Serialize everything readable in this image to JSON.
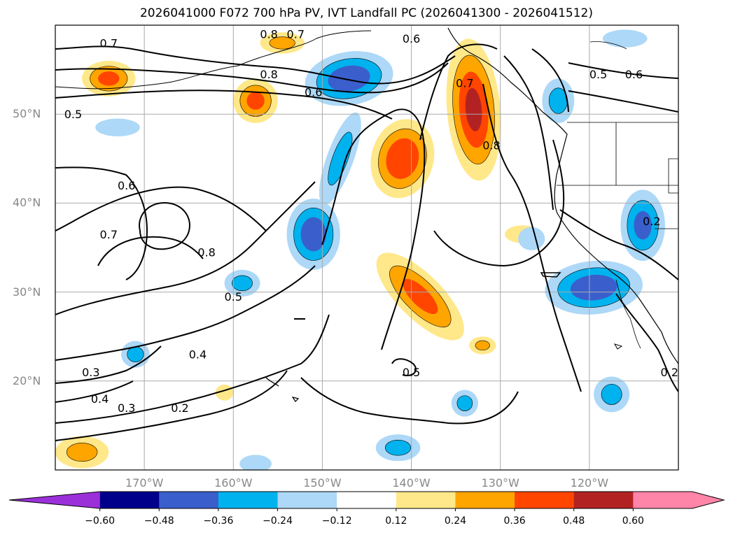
{
  "title": "2026041000 F072 700 hPa PV, IVT Landfall PC (2026041300 - 2026041512)",
  "map_extent": {
    "lon_min": -180,
    "lon_max": -110,
    "lat_min": 10,
    "lat_max": 60
  },
  "lat_labels": [
    {
      "lat": 50,
      "label": "50°N"
    },
    {
      "lat": 40,
      "label": "40°N"
    },
    {
      "lat": 30,
      "label": "30°N"
    },
    {
      "lat": 20,
      "label": "20°N"
    }
  ],
  "lon_labels": [
    {
      "lon": -170,
      "label": "170°W"
    },
    {
      "lon": -160,
      "label": "160°W"
    },
    {
      "lon": -150,
      "label": "150°W"
    },
    {
      "lon": -140,
      "label": "140°W"
    },
    {
      "lon": -130,
      "label": "130°W"
    },
    {
      "lon": -120,
      "label": "120°W"
    }
  ],
  "colorbar": {
    "bounds": [
      -0.72,
      -0.6,
      -0.48,
      -0.36,
      -0.24,
      -0.12,
      0.12,
      0.24,
      0.36,
      0.48,
      0.6,
      0.72
    ],
    "colors": [
      "#9b30d9",
      "#00008b",
      "#3a5fcd",
      "#00b2ee",
      "#add8f7",
      "#ffffff",
      "#ffe88a",
      "#ffa500",
      "#ff4500",
      "#b22222",
      "#ff85a8"
    ],
    "extend_colors": {
      "min": "#9b30d9",
      "max": "#ff85a8"
    },
    "tick_labels": [
      "−0.60",
      "−0.48",
      "−0.36",
      "−0.24",
      "−0.12",
      "0.12",
      "0.24",
      "0.36",
      "0.48",
      "0.60"
    ]
  },
  "contour_labels": [
    {
      "text": "0.7",
      "lon": -174,
      "lat": 58
    },
    {
      "text": "0.7",
      "lon": -153,
      "lat": 59
    },
    {
      "text": "0.8",
      "lon": -156,
      "lat": 59
    },
    {
      "text": "0.6",
      "lon": -140,
      "lat": 58.5
    },
    {
      "text": "0.8",
      "lon": -156,
      "lat": 54.5
    },
    {
      "text": "0.6",
      "lon": -151,
      "lat": 52.5
    },
    {
      "text": "0.5",
      "lon": -178,
      "lat": 50
    },
    {
      "text": "0.7",
      "lon": -134,
      "lat": 53.5
    },
    {
      "text": "0.8",
      "lon": -131,
      "lat": 46.5
    },
    {
      "text": "0.5",
      "lon": -119,
      "lat": 54.5
    },
    {
      "text": "0.6",
      "lon": -115,
      "lat": 54.5
    },
    {
      "text": "0.6",
      "lon": -172,
      "lat": 42
    },
    {
      "text": "0.7",
      "lon": -174,
      "lat": 36.5
    },
    {
      "text": "0.8",
      "lon": -163,
      "lat": 34.5
    },
    {
      "text": "0.5",
      "lon": -160,
      "lat": 29.5
    },
    {
      "text": "0.4",
      "lon": -164,
      "lat": 23
    },
    {
      "text": "0.3",
      "lon": -176,
      "lat": 21
    },
    {
      "text": "0.4",
      "lon": -175,
      "lat": 18
    },
    {
      "text": "0.3",
      "lon": -172,
      "lat": 17
    },
    {
      "text": "0.2",
      "lon": -166,
      "lat": 17
    },
    {
      "text": "0.5",
      "lon": -140,
      "lat": 21
    },
    {
      "text": "0.2",
      "lon": -113,
      "lat": 38
    },
    {
      "text": "0.2",
      "lon": -111,
      "lat": 21
    }
  ],
  "shaded_anomalies": [
    {
      "sign": "positive",
      "peak": 0.48,
      "lon": -141,
      "lat": 45,
      "rx": 3.5,
      "ry": 4.5,
      "rot": 15
    },
    {
      "sign": "positive",
      "peak": 0.5,
      "lon": -133,
      "lat": 50.5,
      "rx": 3.0,
      "ry": 8.0,
      "rot": -5
    },
    {
      "sign": "positive",
      "peak": 0.4,
      "lon": -139,
      "lat": 29.5,
      "rx": 2.5,
      "ry": 6.5,
      "rot": -45
    },
    {
      "sign": "positive",
      "peak": 0.4,
      "lon": -157.5,
      "lat": 51.5,
      "rx": 2.5,
      "ry": 2.5,
      "rot": 0
    },
    {
      "sign": "positive",
      "peak": 0.4,
      "lon": -174,
      "lat": 54,
      "rx": 3.0,
      "ry": 2.0,
      "rot": 0
    },
    {
      "sign": "positive",
      "peak": 0.3,
      "lon": -154.5,
      "lat": 58,
      "rx": 2.5,
      "ry": 1.2,
      "rot": 0
    },
    {
      "sign": "positive",
      "peak": 0.24,
      "lon": -127.5,
      "lat": 36.5,
      "rx": 2.0,
      "ry": 1.0,
      "rot": 0
    },
    {
      "sign": "positive",
      "peak": 0.28,
      "lon": -132,
      "lat": 24,
      "rx": 1.5,
      "ry": 1.0,
      "rot": 0
    },
    {
      "sign": "positive",
      "peak": 0.3,
      "lon": -177,
      "lat": 12,
      "rx": 3.0,
      "ry": 1.8,
      "rot": 0
    },
    {
      "sign": "positive",
      "peak": 0.2,
      "lon": -161,
      "lat": 18.7,
      "rx": 1.0,
      "ry": 0.9,
      "rot": 0
    },
    {
      "sign": "negative",
      "peak": -0.45,
      "lon": -147,
      "lat": 54,
      "rx": 5.0,
      "ry": 3.0,
      "rot": -10
    },
    {
      "sign": "negative",
      "peak": -0.45,
      "lon": -151,
      "lat": 36.5,
      "rx": 3.0,
      "ry": 4.0,
      "rot": 0
    },
    {
      "sign": "negative",
      "peak": -0.45,
      "lon": -119.5,
      "lat": 30.5,
      "rx": 5.5,
      "ry": 3.0,
      "rot": -5
    },
    {
      "sign": "negative",
      "peak": -0.4,
      "lon": -114,
      "lat": 37.5,
      "rx": 2.5,
      "ry": 4.0,
      "rot": 0
    },
    {
      "sign": "negative",
      "peak": -0.3,
      "lon": -148,
      "lat": 45,
      "rx": 1.5,
      "ry": 5.5,
      "rot": 20
    },
    {
      "sign": "negative",
      "peak": -0.3,
      "lon": -123.5,
      "lat": 51.5,
      "rx": 1.8,
      "ry": 2.5,
      "rot": 0
    },
    {
      "sign": "negative",
      "peak": -0.3,
      "lon": -159,
      "lat": 31,
      "rx": 2.0,
      "ry": 1.5,
      "rot": 0
    },
    {
      "sign": "negative",
      "peak": -0.3,
      "lon": -141.5,
      "lat": 12.5,
      "rx": 2.5,
      "ry": 1.5,
      "rot": 0
    },
    {
      "sign": "negative",
      "peak": -0.3,
      "lon": -117.5,
      "lat": 18.5,
      "rx": 2.0,
      "ry": 2.0,
      "rot": 0
    },
    {
      "sign": "negative",
      "peak": -0.3,
      "lon": -171,
      "lat": 23,
      "rx": 1.6,
      "ry": 1.5,
      "rot": 0
    },
    {
      "sign": "negative",
      "peak": -0.3,
      "lon": -134,
      "lat": 17.5,
      "rx": 1.5,
      "ry": 1.5,
      "rot": 0
    },
    {
      "sign": "negative",
      "peak": -0.2,
      "lon": -173,
      "lat": 48.5,
      "rx": 2.5,
      "ry": 1.0,
      "rot": 0
    },
    {
      "sign": "negative",
      "peak": -0.2,
      "lon": -116,
      "lat": 58.5,
      "rx": 2.5,
      "ry": 1.0,
      "rot": 0
    },
    {
      "sign": "negative",
      "peak": -0.2,
      "lon": -126.5,
      "lat": 36,
      "rx": 1.5,
      "ry": 1.3,
      "rot": 0
    },
    {
      "sign": "negative",
      "peak": -0.2,
      "lon": -157.5,
      "lat": 10.7,
      "rx": 1.8,
      "ry": 1.0,
      "rot": 0
    }
  ]
}
